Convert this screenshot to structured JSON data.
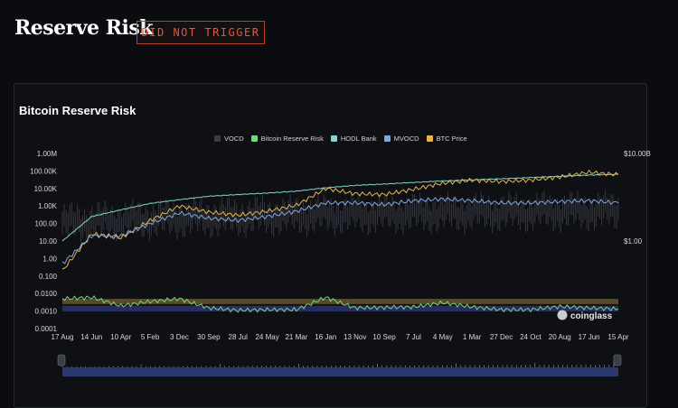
{
  "header": {
    "title": "Reserve Risk",
    "status_badge": "DID NOT TRIGGER"
  },
  "card": {
    "title": "Bitcoin Reserve Risk",
    "watermark": "coinglass"
  },
  "colors": {
    "vocd": "#3a3d45",
    "reserve_risk": "#7ed37a",
    "hodl_bank": "#83d6d0",
    "mvocd": "#7fa7e0",
    "btc_price": "#e3b450",
    "band_high": "#6b5a2e",
    "band_low": "#2a3478"
  },
  "chart_data": {
    "type": "line",
    "title": "Bitcoin Reserve Risk",
    "legend_position": "top-center",
    "legend": [
      "VOCD",
      "Bitcoin Reserve Risk",
      "HODL Bank",
      "MVOCD",
      "BTC Price"
    ],
    "x_tick_labels": [
      "17 Aug",
      "14 Jun",
      "10 Apr",
      "5 Feb",
      "3 Dec",
      "30 Sep",
      "28 Jul",
      "24 May",
      "21 Mar",
      "16 Jan",
      "13 Nov",
      "10 Sep",
      "7 Jul",
      "4 May",
      "1 Mar",
      "27 Dec",
      "24 Oct",
      "20 Aug",
      "17 Jun",
      "15 Apr"
    ],
    "y_left_scale": "log",
    "y_left_ticks": [
      "1.00M",
      "100.00K",
      "10.00K",
      "1.00K",
      "100.00",
      "10.00",
      "1.00",
      "0.100",
      "0.0100",
      "0.0010",
      "0.0001"
    ],
    "y_left_range": [
      0.0001,
      1000000
    ],
    "y_right_ticks": [
      "$10.00B",
      "$1.00"
    ],
    "bands": [
      {
        "name": "upper band",
        "from": 0.0025,
        "to": 0.005
      },
      {
        "name": "lower band",
        "from": 0.00095,
        "to": 0.002
      }
    ],
    "series": [
      {
        "name": "HODL Bank",
        "points": [
          [
            0,
            10
          ],
          [
            1,
            250
          ],
          [
            2,
            600
          ],
          [
            3,
            1400
          ],
          [
            4,
            2300
          ],
          [
            5,
            3600
          ],
          [
            6,
            4500
          ],
          [
            7,
            5500
          ],
          [
            8,
            7000
          ],
          [
            9,
            11000
          ],
          [
            10,
            15000
          ],
          [
            11,
            18000
          ],
          [
            12,
            22000
          ],
          [
            13,
            27000
          ],
          [
            14,
            31000
          ],
          [
            15,
            36000
          ],
          [
            16,
            42000
          ],
          [
            17,
            50000
          ],
          [
            18,
            58000
          ],
          [
            19,
            65000
          ]
        ]
      },
      {
        "name": "BTC Price",
        "points": [
          [
            0,
            0.2
          ],
          [
            1,
            25
          ],
          [
            2,
            15
          ],
          [
            3,
            150
          ],
          [
            4,
            1000
          ],
          [
            5,
            450
          ],
          [
            6,
            300
          ],
          [
            7,
            500
          ],
          [
            8,
            1100
          ],
          [
            9,
            10000
          ],
          [
            10,
            5000
          ],
          [
            11,
            4500
          ],
          [
            12,
            9000
          ],
          [
            13,
            20000
          ],
          [
            14,
            30000
          ],
          [
            15,
            25000
          ],
          [
            16,
            30000
          ],
          [
            17,
            45000
          ],
          [
            18,
            85000
          ],
          [
            19,
            60000
          ]
        ]
      },
      {
        "name": "MVOCD",
        "points": [
          [
            0,
            0.5
          ],
          [
            1,
            20
          ],
          [
            2,
            20
          ],
          [
            3,
            100
          ],
          [
            4,
            400
          ],
          [
            5,
            200
          ],
          [
            6,
            150
          ],
          [
            7,
            250
          ],
          [
            8,
            500
          ],
          [
            9,
            1500
          ],
          [
            10,
            1500
          ],
          [
            11,
            1200
          ],
          [
            12,
            2000
          ],
          [
            13,
            2500
          ],
          [
            14,
            2000
          ],
          [
            15,
            1500
          ],
          [
            16,
            1500
          ],
          [
            17,
            1800
          ],
          [
            18,
            2000
          ],
          [
            19,
            1500
          ]
        ]
      },
      {
        "name": "Bitcoin Reserve Risk",
        "points": [
          [
            0,
            0.005
          ],
          [
            1,
            0.006
          ],
          [
            2,
            0.002
          ],
          [
            3,
            0.0035
          ],
          [
            4,
            0.005
          ],
          [
            5,
            0.0015
          ],
          [
            6,
            0.0011
          ],
          [
            7,
            0.0012
          ],
          [
            8,
            0.0012
          ],
          [
            9,
            0.006
          ],
          [
            10,
            0.0015
          ],
          [
            11,
            0.0016
          ],
          [
            12,
            0.0017
          ],
          [
            13,
            0.003
          ],
          [
            14,
            0.0017
          ],
          [
            15,
            0.0012
          ],
          [
            16,
            0.0012
          ],
          [
            17,
            0.0018
          ],
          [
            18,
            0.0015
          ],
          [
            19,
            0.0013
          ]
        ]
      }
    ]
  }
}
